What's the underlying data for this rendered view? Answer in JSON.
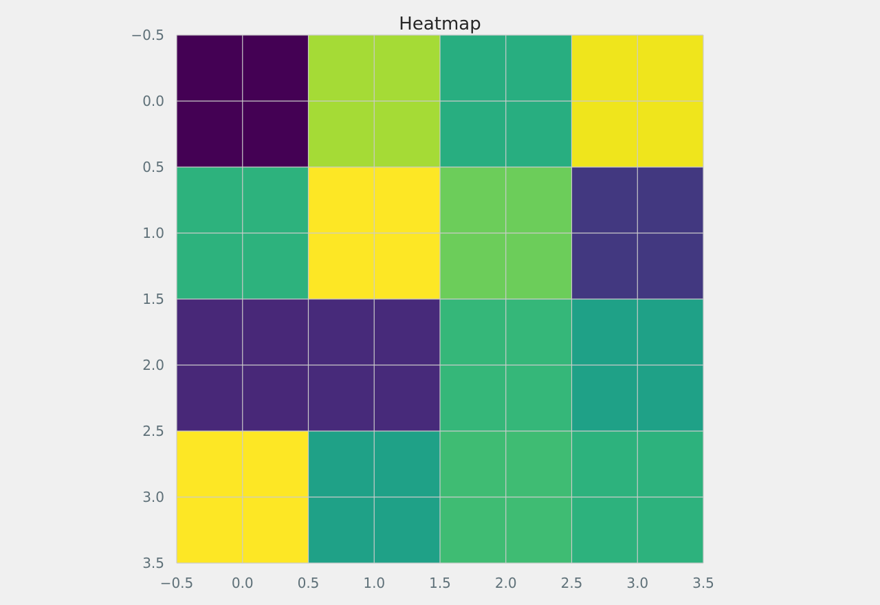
{
  "chart_data": {
    "type": "heatmap",
    "title": "Heatmap",
    "xlabel": "",
    "ylabel": "",
    "colormap": "viridis",
    "xlim": [
      -0.5,
      3.5
    ],
    "ylim": [
      3.5,
      -0.5
    ],
    "y_axis_inverted": true,
    "grid": true,
    "xticks": [
      "−0.5",
      "0.0",
      "0.5",
      "1.0",
      "1.5",
      "2.0",
      "2.5",
      "3.0",
      "3.5"
    ],
    "yticks": [
      "−0.5",
      "0.0",
      "0.5",
      "1.0",
      "1.5",
      "2.0",
      "2.5",
      "3.0",
      "3.5"
    ],
    "xtick_values": [
      -0.5,
      0.0,
      0.5,
      1.0,
      1.5,
      2.0,
      2.5,
      3.0,
      3.5
    ],
    "ytick_values": [
      -0.5,
      0.0,
      0.5,
      1.0,
      1.5,
      2.0,
      2.5,
      3.0,
      3.5
    ],
    "rows": [
      0,
      1,
      2,
      3
    ],
    "cols": [
      0,
      1,
      2,
      3
    ],
    "cell_colors": [
      [
        "#440154",
        "#a5db36",
        "#28ae80",
        "#efe51c"
      ],
      [
        "#2db27d",
        "#fde725",
        "#6ccd5a",
        "#423880"
      ],
      [
        "#482878",
        "#472a7a",
        "#35b779",
        "#1fa187"
      ],
      [
        "#fde725",
        "#1fa187",
        "#3fbc73",
        "#2db27d"
      ]
    ],
    "colors": {
      "background": "#f0f0f0",
      "grid": "#cbcbcb",
      "tick_label": "#5e7078",
      "title": "#262626"
    }
  }
}
